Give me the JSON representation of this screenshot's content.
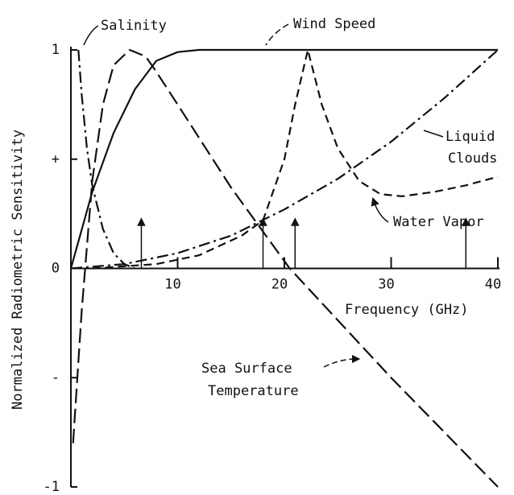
{
  "chart_data": {
    "type": "line",
    "ylabel": "Normalized Radiometric Sensitivity",
    "xlabel": "Frequency (GHz)",
    "xlim": [
      0,
      40
    ],
    "ylim": [
      -1,
      1
    ],
    "xticks": [
      10,
      20,
      30,
      40
    ],
    "yticks": [
      1,
      {
        "value": 0.5,
        "label": "+"
      },
      0,
      {
        "value": -0.5,
        "label": "-"
      },
      -1
    ],
    "series": [
      {
        "name": "Salinity",
        "color": "#111111",
        "style": "dashdot",
        "x": [
          0.7,
          1,
          1.5,
          2,
          3,
          4,
          5,
          6
        ],
        "values": [
          1.0,
          0.8,
          0.55,
          0.38,
          0.18,
          0.07,
          0.02,
          0
        ]
      },
      {
        "name": "Wind Speed",
        "color": "#111111",
        "style": "solid",
        "x": [
          0,
          2,
          4,
          6,
          8,
          10,
          12,
          40
        ],
        "values": [
          0,
          0.35,
          0.62,
          0.82,
          0.95,
          0.99,
          1.0,
          1.0
        ]
      },
      {
        "name": "Sea Surface Temperature",
        "color": "#111111",
        "style": "longdash",
        "x": [
          0.2,
          1,
          2,
          3,
          4,
          5.5,
          7,
          8,
          10,
          15,
          20.5,
          30,
          40
        ],
        "values": [
          -0.8,
          -0.2,
          0.4,
          0.75,
          0.93,
          1.0,
          0.97,
          0.9,
          0.75,
          0.37,
          0,
          -0.5,
          -1.0
        ]
      },
      {
        "name": "Water Vapor",
        "color": "#111111",
        "style": "dash",
        "x": [
          2,
          8,
          12,
          16,
          18,
          20,
          21,
          22.2,
          23.5,
          25,
          27,
          29,
          31,
          34,
          37,
          40
        ],
        "values": [
          0,
          0.02,
          0.06,
          0.15,
          0.22,
          0.5,
          0.75,
          1.0,
          0.75,
          0.55,
          0.4,
          0.34,
          0.33,
          0.35,
          0.38,
          0.42
        ]
      },
      {
        "name": "Liquid Clouds",
        "color": "#111111",
        "style": "dashdot",
        "x": [
          0,
          5,
          10,
          15,
          20,
          25,
          30,
          35,
          40
        ],
        "values": [
          0,
          0.02,
          0.07,
          0.15,
          0.27,
          0.41,
          0.58,
          0.78,
          1.0
        ]
      }
    ],
    "channel_markers": [
      6.6,
      18,
      21,
      37
    ],
    "annotations": [
      {
        "lines": [
          "Salinity"
        ]
      },
      {
        "lines": [
          "Wind Speed"
        ]
      },
      {
        "lines": [
          "Liquid",
          "Clouds"
        ]
      },
      {
        "lines": [
          "Water Vapor"
        ]
      },
      {
        "lines": [
          "Sea Surface",
          "Temperature"
        ]
      }
    ]
  }
}
